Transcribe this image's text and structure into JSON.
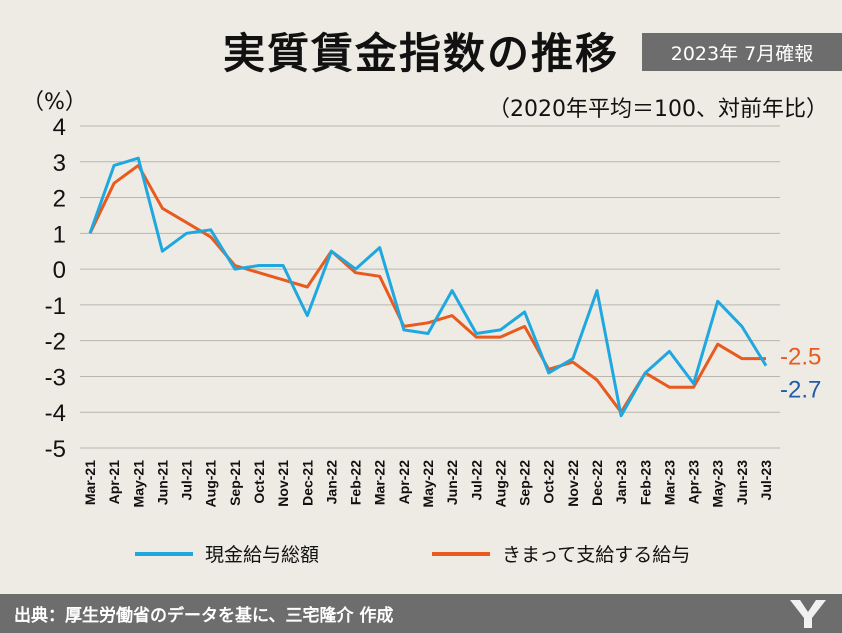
{
  "header": {
    "title": "実質賃金指数の推移",
    "badge": "2023年 7月確報",
    "unit": "（%）",
    "note": "（2020年平均＝100、対前年比）"
  },
  "legend": {
    "series1": "現金給与総額",
    "series2": "きまって支給する給与"
  },
  "footer": {
    "source": "出典：厚生労働省のデータを基に、三宅隆介 作成"
  },
  "colors": {
    "series1": "#1fa8e0",
    "series2": "#e85a1e",
    "label1": "#1f5da8",
    "label2": "#e85a1e"
  },
  "chart_data": {
    "type": "line",
    "categories": [
      "Mar-21",
      "Apr-21",
      "May-21",
      "Jun-21",
      "Jul-21",
      "Aug-21",
      "Sep-21",
      "Oct-21",
      "Nov-21",
      "Dec-21",
      "Jan-22",
      "Feb-22",
      "Mar-22",
      "Apr-22",
      "May-22",
      "Jun-22",
      "Jul-22",
      "Aug-22",
      "Sep-22",
      "Oct-22",
      "Nov-22",
      "Dec-22",
      "Jan-23",
      "Feb-23",
      "Mar-23",
      "Apr-23",
      "May-23",
      "Jun-23",
      "Jul-23"
    ],
    "series": [
      {
        "name": "現金給与総額",
        "values": [
          1.0,
          2.9,
          3.1,
          0.5,
          1.0,
          1.1,
          0.0,
          0.1,
          0.1,
          -1.3,
          0.5,
          0.0,
          0.6,
          -1.7,
          -1.8,
          -0.6,
          -1.8,
          -1.7,
          -1.2,
          -2.9,
          -2.5,
          -0.6,
          -4.1,
          -2.9,
          -2.3,
          -3.2,
          -0.9,
          -1.6,
          -2.7
        ]
      },
      {
        "name": "きまって支給する給与",
        "values": [
          1.0,
          2.4,
          2.9,
          1.7,
          1.3,
          0.9,
          0.1,
          -0.1,
          -0.3,
          -0.5,
          0.5,
          -0.1,
          -0.2,
          -1.6,
          -1.5,
          -1.3,
          -1.9,
          -1.9,
          -1.6,
          -2.8,
          -2.6,
          -3.1,
          -4.0,
          -2.9,
          -3.3,
          -3.3,
          -2.1,
          -2.5,
          -2.5
        ]
      }
    ],
    "ylim": [
      -5,
      4
    ],
    "yticks": [
      "4",
      "3",
      "2",
      "1",
      "0",
      "-1",
      "-2",
      "-3",
      "-4",
      "-5"
    ],
    "end_labels": {
      "series1": "-2.7",
      "series2": "-2.5"
    },
    "grid": true
  }
}
